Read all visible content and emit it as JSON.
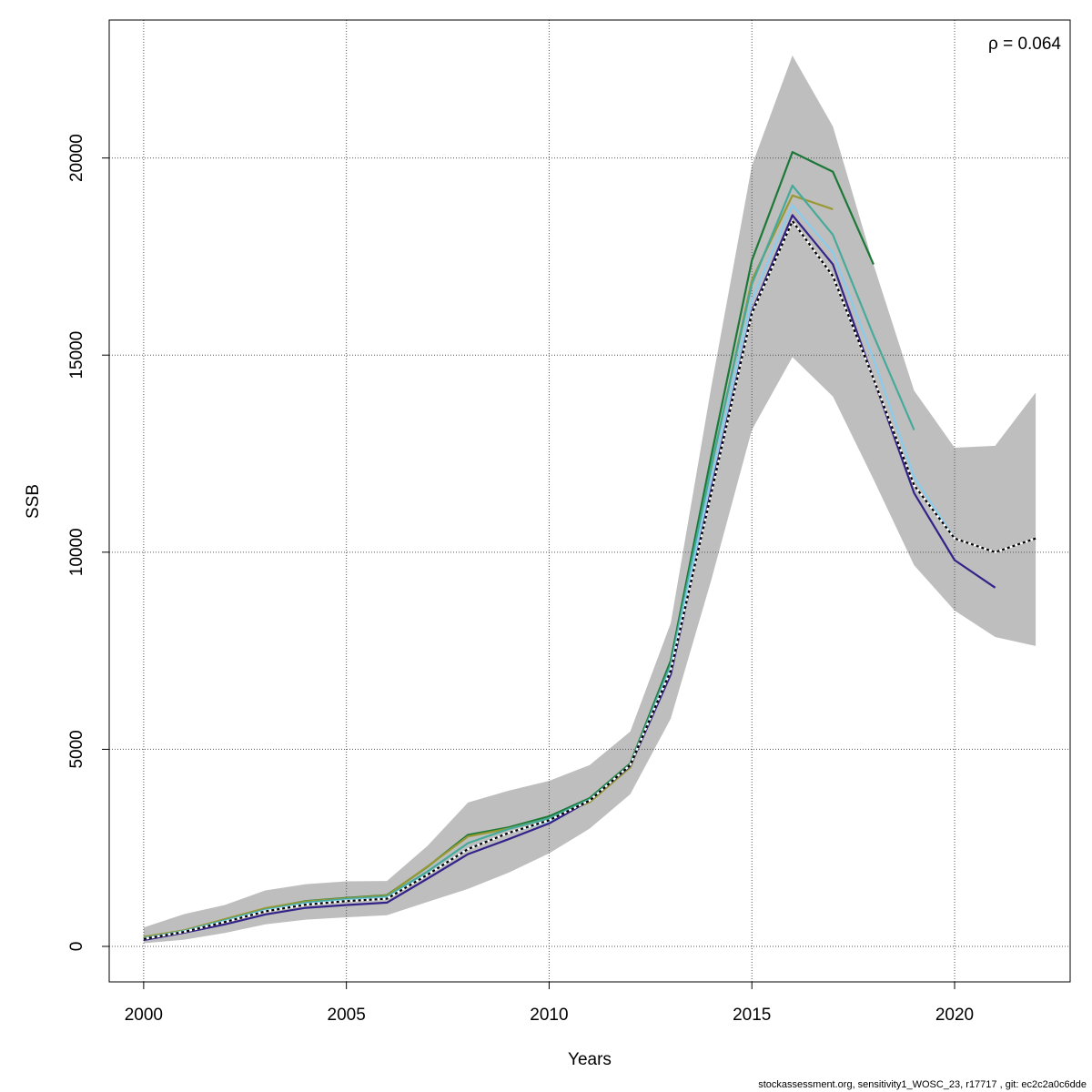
{
  "chart_data": {
    "type": "line",
    "xlabel": "Years",
    "ylabel": "SSB",
    "xlim": [
      1999.15,
      2022.85
    ],
    "ylim": [
      -900,
      23500
    ],
    "x_ticks": [
      2000,
      2005,
      2010,
      2015,
      2020
    ],
    "y_ticks": [
      0,
      5000,
      10000,
      15000,
      20000
    ],
    "grid": true,
    "annotation": "ρ = 0.064",
    "annotation_position": "top-right",
    "confidence_band": {
      "color": "#bebebe",
      "x": [
        2000,
        2001,
        2002,
        2003,
        2004,
        2005,
        2006,
        2007,
        2008,
        2009,
        2010,
        2011,
        2012,
        2013,
        2014,
        2015,
        2016,
        2017,
        2018,
        2019,
        2020,
        2021,
        2022
      ],
      "upper": [
        480,
        820,
        1050,
        1420,
        1580,
        1650,
        1660,
        2550,
        3650,
        3950,
        4200,
        4600,
        5450,
        8200,
        14200,
        19800,
        22600,
        20800,
        17300,
        14100,
        12650,
        12700,
        14050
      ],
      "lower": [
        80,
        170,
        340,
        560,
        680,
        740,
        790,
        1130,
        1460,
        1870,
        2360,
        2990,
        3860,
        5780,
        9300,
        13100,
        14950,
        13950,
        11850,
        9670,
        8520,
        7850,
        7620
      ]
    },
    "series": [
      {
        "color": "#1b7837",
        "x": [
          2000,
          2001,
          2002,
          2003,
          2004,
          2005,
          2006,
          2007,
          2008,
          2009,
          2010,
          2011,
          2012,
          2013,
          2014,
          2015,
          2016,
          2017,
          2018
        ],
        "values": [
          220,
          400,
          680,
          960,
          1150,
          1230,
          1300,
          2020,
          2830,
          3020,
          3300,
          3760,
          4640,
          7250,
          12450,
          17400,
          20150,
          19650,
          17300
        ]
      },
      {
        "color": "#999933",
        "x": [
          2000,
          2001,
          2002,
          2003,
          2004,
          2005,
          2006,
          2007,
          2008,
          2009,
          2010,
          2011,
          2012,
          2013,
          2014,
          2015,
          2016,
          2017
        ],
        "values": [
          240,
          410,
          690,
          970,
          1140,
          1220,
          1290,
          2030,
          2790,
          2990,
          3250,
          3660,
          4540,
          7100,
          12150,
          16900,
          19050,
          18700
        ]
      },
      {
        "color": "#44aa99",
        "x": [
          2000,
          2001,
          2002,
          2003,
          2004,
          2005,
          2006,
          2007,
          2008,
          2009,
          2010,
          2011,
          2012,
          2013,
          2014,
          2015,
          2016,
          2017,
          2018,
          2019
        ],
        "values": [
          210,
          390,
          660,
          930,
          1110,
          1200,
          1260,
          1900,
          2620,
          2980,
          3250,
          3730,
          4610,
          7150,
          12200,
          16800,
          19300,
          18050,
          15500,
          13100
        ]
      },
      {
        "color": "#88ccee",
        "x": [
          2000,
          2001,
          2002,
          2003,
          2004,
          2005,
          2006,
          2007,
          2008,
          2009,
          2010,
          2011,
          2012,
          2013,
          2014,
          2015,
          2016,
          2017,
          2018,
          2019,
          2020
        ],
        "values": [
          200,
          380,
          640,
          910,
          1080,
          1170,
          1230,
          1830,
          2480,
          2880,
          3180,
          3700,
          4590,
          7050,
          11900,
          16400,
          18800,
          17600,
          14900,
          11900,
          10350
        ]
      },
      {
        "color": "#332288",
        "x": [
          2000,
          2001,
          2002,
          2003,
          2004,
          2005,
          2006,
          2007,
          2008,
          2009,
          2010,
          2011,
          2012,
          2013,
          2014,
          2015,
          2016,
          2017,
          2018,
          2019,
          2020,
          2021
        ],
        "values": [
          160,
          350,
          560,
          810,
          980,
          1050,
          1110,
          1720,
          2340,
          2720,
          3120,
          3700,
          4580,
          6900,
          11600,
          16100,
          18550,
          17300,
          14400,
          11500,
          9800,
          9100
        ]
      },
      {
        "color": "#000000",
        "dashed": true,
        "x": [
          2000,
          2001,
          2002,
          2003,
          2004,
          2005,
          2006,
          2007,
          2008,
          2009,
          2010,
          2011,
          2012,
          2013,
          2014,
          2015,
          2016,
          2017,
          2018,
          2019,
          2020,
          2021,
          2022
        ],
        "values": [
          190,
          370,
          620,
          890,
          1060,
          1150,
          1210,
          1820,
          2470,
          2880,
          3200,
          3700,
          4600,
          7000,
          11500,
          16050,
          18400,
          17000,
          14400,
          11700,
          10350,
          10000,
          10350
        ]
      }
    ]
  },
  "footer": "stockassessment.org, sensitivity1_WOSC_23, r17717 , git: ec2c2a0c6dde"
}
